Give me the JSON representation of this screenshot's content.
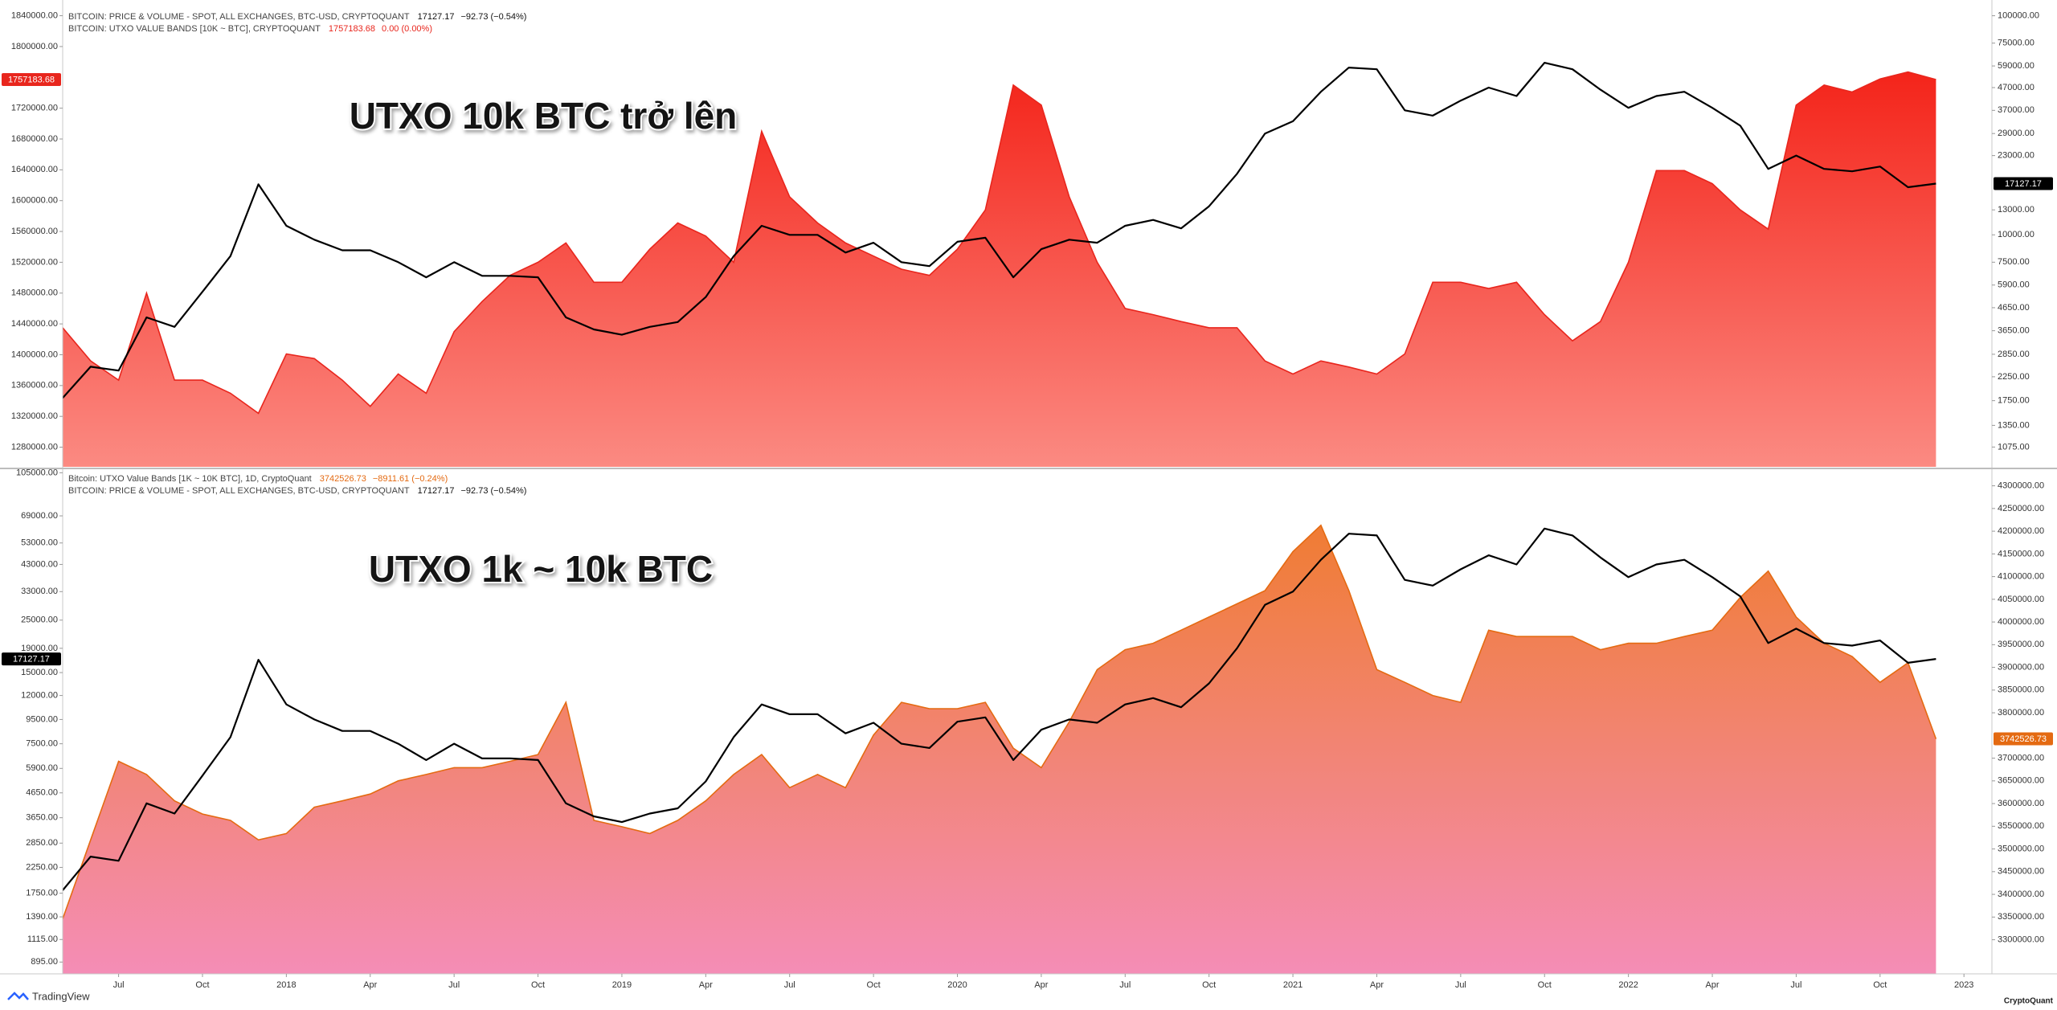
{
  "chart_data": [
    {
      "type": "line",
      "annotation": "UTXO 10k BTC trở lên",
      "x": [
        "2017-05",
        "2017-06",
        "2017-07",
        "2017-08",
        "2017-09",
        "2017-10",
        "2017-11",
        "2017-12",
        "2018-01",
        "2018-02",
        "2018-03",
        "2018-04",
        "2018-05",
        "2018-06",
        "2018-07",
        "2018-08",
        "2018-09",
        "2018-10",
        "2018-11",
        "2018-12",
        "2019-01",
        "2019-02",
        "2019-03",
        "2019-04",
        "2019-05",
        "2019-06",
        "2019-07",
        "2019-08",
        "2019-09",
        "2019-10",
        "2019-11",
        "2019-12",
        "2020-01",
        "2020-02",
        "2020-03",
        "2020-04",
        "2020-05",
        "2020-06",
        "2020-07",
        "2020-08",
        "2020-09",
        "2020-10",
        "2020-11",
        "2020-12",
        "2021-01",
        "2021-02",
        "2021-03",
        "2021-04",
        "2021-05",
        "2021-06",
        "2021-07",
        "2021-08",
        "2021-09",
        "2021-10",
        "2021-11",
        "2021-12",
        "2022-01",
        "2022-02",
        "2022-03",
        "2022-04",
        "2022-05",
        "2022-06",
        "2022-07",
        "2022-08",
        "2022-09",
        "2022-10",
        "2022-11",
        "2022-12"
      ],
      "xlim": [
        "2017-05",
        "2023-02"
      ],
      "ylim": [
        1254500,
        1860400
      ],
      "yticks": [
        {
          "value": 1840000,
          "label": "1840000.00"
        },
        {
          "value": 1800000,
          "label": "1800000.00"
        },
        {
          "value": 1720000,
          "label": "1720000.00"
        },
        {
          "value": 1680000,
          "label": "1680000.00"
        },
        {
          "value": 1640000,
          "label": "1640000.00"
        },
        {
          "value": 1600000,
          "label": "1600000.00"
        },
        {
          "value": 1560000,
          "label": "1560000.00"
        },
        {
          "value": 1520000,
          "label": "1520000.00"
        },
        {
          "value": 1480000,
          "label": "1480000.00"
        },
        {
          "value": 1440000,
          "label": "1440000.00"
        },
        {
          "value": 1400000,
          "label": "1400000.00"
        },
        {
          "value": 1360000,
          "label": "1360000.00"
        },
        {
          "value": 1320000,
          "label": "1320000.00"
        },
        {
          "value": 1280000,
          "label": "1280000.00"
        }
      ],
      "ylog": false,
      "y2lim": [
        873,
        118000
      ],
      "y2ticks": [
        {
          "value": 100000,
          "label": "100000.00"
        },
        {
          "value": 75000,
          "label": "75000.00"
        },
        {
          "value": 59000,
          "label": "59000.00"
        },
        {
          "value": 47000,
          "label": "47000.00"
        },
        {
          "value": 37000,
          "label": "37000.00"
        },
        {
          "value": 29000,
          "label": "29000.00"
        },
        {
          "value": 23000,
          "label": "23000.00"
        },
        {
          "value": 13000,
          "label": "13000.00"
        },
        {
          "value": 10000,
          "label": "10000.00"
        },
        {
          "value": 7500,
          "label": "7500.00"
        },
        {
          "value": 5900,
          "label": "5900.00"
        },
        {
          "value": 4650,
          "label": "4650.00"
        },
        {
          "value": 3650,
          "label": "3650.00"
        },
        {
          "value": 2850,
          "label": "2850.00"
        },
        {
          "value": 2250,
          "label": "2250.00"
        },
        {
          "value": 1750,
          "label": "1750.00"
        },
        {
          "value": 1350,
          "label": "1350.00"
        },
        {
          "value": 1075,
          "label": "1075.00"
        }
      ],
      "y2log": true,
      "series": [
        {
          "name": "BITCOIN: UTXO VALUE BANDS [10K ~ BTC], CRYPTOQUANT",
          "type": "area",
          "axis": "y",
          "color": "#e8261d",
          "fill_top": "#f4241a",
          "fill_bottom": "#fb8a82",
          "last_label": "1757183.68",
          "change": "0.00 (0.00%)",
          "values": [
            1435000,
            1392000,
            1367000,
            1480000,
            1367000,
            1367000,
            1350000,
            1324000,
            1401000,
            1395000,
            1367000,
            1333000,
            1375000,
            1350000,
            1430000,
            1469000,
            1503000,
            1520000,
            1545000,
            1494000,
            1494000,
            1537000,
            1571000,
            1554000,
            1520000,
            1690000,
            1605000,
            1571000,
            1545000,
            1528000,
            1511000,
            1503000,
            1537000,
            1588000,
            1750000,
            1724000,
            1605000,
            1520000,
            1460000,
            1452000,
            1443000,
            1435000,
            1435000,
            1392000,
            1375000,
            1392000,
            1384000,
            1375000,
            1401000,
            1494000,
            1494000,
            1486000,
            1494000,
            1452000,
            1418000,
            1443000,
            1520000,
            1639000,
            1639000,
            1622000,
            1588000,
            1563000,
            1724000,
            1750000,
            1741000,
            1758000,
            1767000,
            1757183.68
          ]
        },
        {
          "name": "BITCOIN: PRICE & VOLUME - SPOT, ALL EXCHANGES, BTC-USD, CRYPTOQUANT",
          "type": "line",
          "axis": "y2",
          "color": "#000000",
          "last_label": "17127.17",
          "change": "−92.73 (−0.54%)",
          "values": [
            1800,
            2500,
            2400,
            4200,
            3800,
            5500,
            8000,
            17000,
            11000,
            9500,
            8500,
            8500,
            7500,
            6400,
            7500,
            6500,
            6500,
            6400,
            4200,
            3700,
            3500,
            3800,
            4000,
            5200,
            8000,
            11000,
            10000,
            10000,
            8300,
            9200,
            7500,
            7200,
            9300,
            9700,
            6400,
            8600,
            9500,
            9200,
            11000,
            11700,
            10700,
            13500,
            19000,
            29000,
            33000,
            45000,
            58000,
            57000,
            37000,
            35000,
            41000,
            47000,
            43000,
            61000,
            57000,
            46000,
            38000,
            43000,
            45000,
            38000,
            31500,
            20000,
            23000,
            20000,
            19500,
            20500,
            16500,
            17127.17
          ]
        }
      ]
    },
    {
      "type": "line",
      "annotation": "UTXO 1k ~ 10k BTC",
      "x": [
        "2017-05",
        "2017-06",
        "2017-07",
        "2017-08",
        "2017-09",
        "2017-10",
        "2017-11",
        "2017-12",
        "2018-01",
        "2018-02",
        "2018-03",
        "2018-04",
        "2018-05",
        "2018-06",
        "2018-07",
        "2018-08",
        "2018-09",
        "2018-10",
        "2018-11",
        "2018-12",
        "2019-01",
        "2019-02",
        "2019-03",
        "2019-04",
        "2019-05",
        "2019-06",
        "2019-07",
        "2019-08",
        "2019-09",
        "2019-10",
        "2019-11",
        "2019-12",
        "2020-01",
        "2020-02",
        "2020-03",
        "2020-04",
        "2020-05",
        "2020-06",
        "2020-07",
        "2020-08",
        "2020-09",
        "2020-10",
        "2020-11",
        "2020-12",
        "2021-01",
        "2021-02",
        "2021-03",
        "2021-04",
        "2021-05",
        "2021-06",
        "2021-07",
        "2021-08",
        "2021-09",
        "2021-10",
        "2021-11",
        "2021-12",
        "2022-01",
        "2022-02",
        "2022-03",
        "2022-04",
        "2022-05",
        "2022-06",
        "2022-07",
        "2022-08",
        "2022-09",
        "2022-10",
        "2022-11",
        "2022-12"
      ],
      "xlim": [
        "2017-05",
        "2023-02"
      ],
      "xticks": [
        {
          "value": "2017-07",
          "label": "Jul"
        },
        {
          "value": "2017-10",
          "label": "Oct"
        },
        {
          "value": "2018-01",
          "label": "2018"
        },
        {
          "value": "2018-04",
          "label": "Apr"
        },
        {
          "value": "2018-07",
          "label": "Jul"
        },
        {
          "value": "2018-10",
          "label": "Oct"
        },
        {
          "value": "2019-01",
          "label": "2019"
        },
        {
          "value": "2019-04",
          "label": "Apr"
        },
        {
          "value": "2019-07",
          "label": "Jul"
        },
        {
          "value": "2019-10",
          "label": "Oct"
        },
        {
          "value": "2020-01",
          "label": "2020"
        },
        {
          "value": "2020-04",
          "label": "Apr"
        },
        {
          "value": "2020-07",
          "label": "Jul"
        },
        {
          "value": "2020-10",
          "label": "Oct"
        },
        {
          "value": "2021-01",
          "label": "2021"
        },
        {
          "value": "2021-04",
          "label": "Apr"
        },
        {
          "value": "2021-07",
          "label": "Jul"
        },
        {
          "value": "2021-10",
          "label": "Oct"
        },
        {
          "value": "2022-01",
          "label": "2022"
        },
        {
          "value": "2022-04",
          "label": "Apr"
        },
        {
          "value": "2022-07",
          "label": "Jul"
        },
        {
          "value": "2022-10",
          "label": "Oct"
        },
        {
          "value": "2023-01",
          "label": "2023"
        }
      ],
      "ylim": [
        798,
        107800
      ],
      "yticks": [
        {
          "value": 105000,
          "label": "105000.00"
        },
        {
          "value": 69000,
          "label": "69000.00"
        },
        {
          "value": 53000,
          "label": "53000.00"
        },
        {
          "value": 43000,
          "label": "43000.00"
        },
        {
          "value": 33000,
          "label": "33000.00"
        },
        {
          "value": 25000,
          "label": "25000.00"
        },
        {
          "value": 19000,
          "label": "19000.00"
        },
        {
          "value": 15000,
          "label": "15000.00"
        },
        {
          "value": 12000,
          "label": "12000.00"
        },
        {
          "value": 9500,
          "label": "9500.00"
        },
        {
          "value": 7500,
          "label": "7500.00"
        },
        {
          "value": 5900,
          "label": "5900.00"
        },
        {
          "value": 4650,
          "label": "4650.00"
        },
        {
          "value": 3650,
          "label": "3650.00"
        },
        {
          "value": 2850,
          "label": "2850.00"
        },
        {
          "value": 2250,
          "label": "2250.00"
        },
        {
          "value": 1750,
          "label": "1750.00"
        },
        {
          "value": 1390,
          "label": "1390.00"
        },
        {
          "value": 1115,
          "label": "1115.00"
        },
        {
          "value": 895,
          "label": "895.00"
        }
      ],
      "ylog": true,
      "y2lim": [
        3224900,
        4334700
      ],
      "y2ticks": [
        {
          "value": 4300000,
          "label": "4300000.00"
        },
        {
          "value": 4250000,
          "label": "4250000.00"
        },
        {
          "value": 4200000,
          "label": "4200000.00"
        },
        {
          "value": 4150000,
          "label": "4150000.00"
        },
        {
          "value": 4100000,
          "label": "4100000.00"
        },
        {
          "value": 4050000,
          "label": "4050000.00"
        },
        {
          "value": 4000000,
          "label": "4000000.00"
        },
        {
          "value": 3950000,
          "label": "3950000.00"
        },
        {
          "value": 3900000,
          "label": "3900000.00"
        },
        {
          "value": 3850000,
          "label": "3850000.00"
        },
        {
          "value": 3800000,
          "label": "3800000.00"
        },
        {
          "value": 3700000,
          "label": "3700000.00"
        },
        {
          "value": 3650000,
          "label": "3650000.00"
        },
        {
          "value": 3600000,
          "label": "3600000.00"
        },
        {
          "value": 3550000,
          "label": "3550000.00"
        },
        {
          "value": 3500000,
          "label": "3500000.00"
        },
        {
          "value": 3450000,
          "label": "3450000.00"
        },
        {
          "value": 3400000,
          "label": "3400000.00"
        },
        {
          "value": 3350000,
          "label": "3350000.00"
        },
        {
          "value": 3300000,
          "label": "3300000.00"
        }
      ],
      "y2log": false,
      "series": [
        {
          "name": "Bitcoin: UTXO Value Bands [1K ~ 10K BTC], 1D, CryptoQuant",
          "type": "area",
          "axis": "y2",
          "color": "#e46a12",
          "fill_top": "#f07c33",
          "fill_bottom": "#f48db6",
          "last_label": "3742526.73",
          "change": "−8911.61 (−0.24%)",
          "values": [
            3346000,
            3520000,
            3693000,
            3664000,
            3606000,
            3577000,
            3563000,
            3520000,
            3534000,
            3592000,
            3606000,
            3621000,
            3650000,
            3664000,
            3679000,
            3679000,
            3693000,
            3708000,
            3823000,
            3563000,
            3549000,
            3534000,
            3563000,
            3606000,
            3664000,
            3708000,
            3635000,
            3664000,
            3635000,
            3751000,
            3823000,
            3809000,
            3809000,
            3823000,
            3722000,
            3679000,
            3780000,
            3895000,
            3939000,
            3953000,
            3982000,
            4011000,
            4040000,
            4069000,
            4155000,
            4213000,
            4069000,
            3895000,
            3867000,
            3838000,
            3823000,
            3982000,
            3968000,
            3968000,
            3968000,
            3939000,
            3953000,
            3953000,
            3968000,
            3982000,
            4054000,
            4112000,
            4011000,
            3953000,
            3924000,
            3867000,
            3910000,
            3742526.73
          ]
        },
        {
          "name": "BITCOIN: PRICE & VOLUME - SPOT, ALL EXCHANGES, BTC-USD, CRYPTOQUANT",
          "type": "line",
          "axis": "y",
          "color": "#000000",
          "last_label": "17127.17",
          "change": "−92.73 (−0.54%)",
          "values": [
            1800,
            2500,
            2400,
            4200,
            3800,
            5500,
            8000,
            17000,
            11000,
            9500,
            8500,
            8500,
            7500,
            6400,
            7500,
            6500,
            6500,
            6400,
            4200,
            3700,
            3500,
            3800,
            4000,
            5200,
            8000,
            11000,
            10000,
            10000,
            8300,
            9200,
            7500,
            7200,
            9300,
            9700,
            6400,
            8600,
            9500,
            9200,
            11000,
            11700,
            10700,
            13500,
            19000,
            29000,
            33000,
            45000,
            58000,
            57000,
            37000,
            35000,
            41000,
            47000,
            43000,
            61000,
            57000,
            46000,
            38000,
            43000,
            45000,
            38000,
            31500,
            20000,
            23000,
            20000,
            19500,
            20500,
            16500,
            17127.17
          ]
        }
      ]
    }
  ],
  "footer": {
    "left": "TradingView",
    "right": "CryptoQuant"
  }
}
